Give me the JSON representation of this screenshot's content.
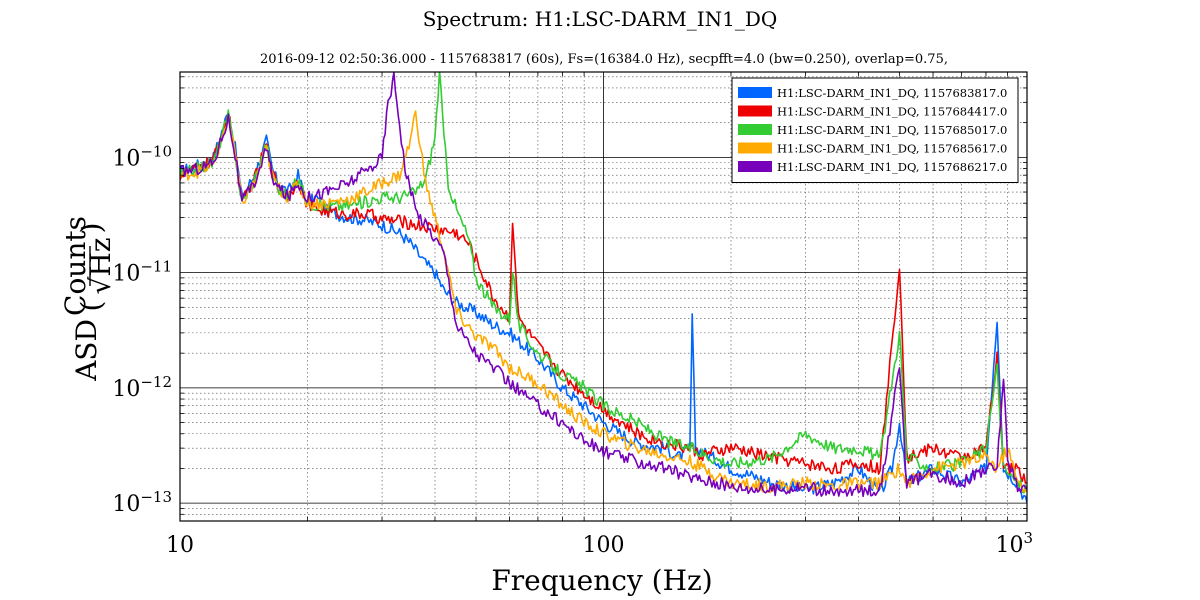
{
  "chart_data": {
    "type": "line",
    "title": "Spectrum: H1:LSC-DARM_IN1_DQ",
    "subtitle": "2016-09-12 02:50:36.000 - 1157683817 (60s), Fs=(16384.0 Hz), secpfft=4.0 (bw=0.250), overlap=0.75,",
    "xlabel": "Frequency (Hz)",
    "ylabel": {
      "prefix": "ASD",
      "numerator": "Counts",
      "denominator": "√Hz"
    },
    "xscale": "log",
    "yscale": "log",
    "xlim": [
      10,
      1000
    ],
    "ylim": [
      7e-14,
      5.5e-10
    ],
    "x_ticks": [
      {
        "value": 10,
        "base": "10",
        "exp": ""
      },
      {
        "value": 100,
        "base": "100",
        "exp": ""
      },
      {
        "value": 1000,
        "base": "10",
        "exp": "3"
      }
    ],
    "y_ticks": [
      {
        "value": 1e-10,
        "base": "10",
        "exp": "−10"
      },
      {
        "value": 1e-11,
        "base": "10",
        "exp": "−11"
      },
      {
        "value": 1e-12,
        "base": "10",
        "exp": "−12"
      },
      {
        "value": 1e-13,
        "base": "10",
        "exp": "−13"
      }
    ],
    "grid": true,
    "legend_position": "top-right",
    "series": [
      {
        "name": "H1:LSC-DARM_IN1_DQ, 1157683817.0",
        "color": "#0066ff",
        "points": [
          [
            10,
            7.5e-11
          ],
          [
            11,
            8.5e-11
          ],
          [
            12,
            1e-10
          ],
          [
            13,
            2.5e-10
          ],
          [
            13.5,
            1.2e-10
          ],
          [
            14,
            4.5e-11
          ],
          [
            15,
            7e-11
          ],
          [
            16,
            1.4e-10
          ],
          [
            16.5,
            8e-11
          ],
          [
            17,
            6e-11
          ],
          [
            18,
            5e-11
          ],
          [
            19,
            7e-11
          ],
          [
            20,
            4e-11
          ],
          [
            21,
            4.5e-11
          ],
          [
            22,
            3.5e-11
          ],
          [
            23,
            3.3e-11
          ],
          [
            25,
            3e-11
          ],
          [
            27,
            2.9e-11
          ],
          [
            30,
            2.6e-11
          ],
          [
            33,
            2.2e-11
          ],
          [
            35,
            1.8e-11
          ],
          [
            38,
            1.2e-11
          ],
          [
            40,
            1e-11
          ],
          [
            42,
            7e-12
          ],
          [
            45,
            5.5e-12
          ],
          [
            50,
            4.5e-12
          ],
          [
            55,
            3.5e-12
          ],
          [
            60,
            3e-12
          ],
          [
            70,
            1.8e-12
          ],
          [
            80,
            1e-12
          ],
          [
            90,
            7e-13
          ],
          [
            100,
            5e-13
          ],
          [
            110,
            4e-13
          ],
          [
            120,
            3.3e-13
          ],
          [
            140,
            3e-13
          ],
          [
            150,
            2.5e-13
          ],
          [
            160,
            3e-13
          ],
          [
            162,
            4e-12
          ],
          [
            165,
            3e-13
          ],
          [
            180,
            2.5e-13
          ],
          [
            200,
            2e-13
          ],
          [
            250,
            1.5e-13
          ],
          [
            300,
            1.3e-13
          ],
          [
            350,
            1.5e-13
          ],
          [
            400,
            2e-13
          ],
          [
            450,
            1.2e-13
          ],
          [
            480,
            2e-13
          ],
          [
            500,
            5e-13
          ],
          [
            520,
            1.5e-13
          ],
          [
            600,
            2e-13
          ],
          [
            700,
            1.5e-13
          ],
          [
            800,
            2e-13
          ],
          [
            850,
            4e-12
          ],
          [
            880,
            2e-13
          ],
          [
            950,
            1.5e-13
          ],
          [
            1000,
            1e-13
          ]
        ]
      },
      {
        "name": "H1:LSC-DARM_IN1_DQ, 1157684417.0",
        "color": "#ee0000",
        "points": [
          [
            10,
            7e-11
          ],
          [
            11,
            8e-11
          ],
          [
            12,
            9.5e-11
          ],
          [
            13,
            2.4e-10
          ],
          [
            13.5,
            1.1e-10
          ],
          [
            14,
            4e-11
          ],
          [
            15,
            6.5e-11
          ],
          [
            16,
            1.3e-10
          ],
          [
            16.5,
            7.5e-11
          ],
          [
            17,
            5.5e-11
          ],
          [
            18,
            4.5e-11
          ],
          [
            19,
            6.5e-11
          ],
          [
            20,
            3.8e-11
          ],
          [
            22,
            3.4e-11
          ],
          [
            25,
            3.2e-11
          ],
          [
            28,
            3.2e-11
          ],
          [
            30,
            2.9e-11
          ],
          [
            33,
            2.8e-11
          ],
          [
            36,
            2.6e-11
          ],
          [
            40,
            2.4e-11
          ],
          [
            45,
            2.2e-11
          ],
          [
            48,
            1.8e-11
          ],
          [
            50,
            1.3e-11
          ],
          [
            55,
            6e-12
          ],
          [
            60,
            4e-12
          ],
          [
            61,
            3e-11
          ],
          [
            63,
            4e-12
          ],
          [
            70,
            2.3e-12
          ],
          [
            80,
            1.3e-12
          ],
          [
            90,
            9e-13
          ],
          [
            100,
            6.5e-13
          ],
          [
            120,
            4e-13
          ],
          [
            140,
            3.3e-13
          ],
          [
            160,
            3e-13
          ],
          [
            170,
            2.6e-13
          ],
          [
            200,
            3e-13
          ],
          [
            250,
            2.5e-13
          ],
          [
            300,
            2.2e-13
          ],
          [
            350,
            2e-13
          ],
          [
            400,
            2.2e-13
          ],
          [
            450,
            2e-13
          ],
          [
            500,
            1.2e-11
          ],
          [
            520,
            2.5e-13
          ],
          [
            600,
            3e-13
          ],
          [
            700,
            2.5e-13
          ],
          [
            800,
            3e-13
          ],
          [
            850,
            1.8e-12
          ],
          [
            880,
            2e-13
          ],
          [
            950,
            2e-13
          ],
          [
            1000,
            1.5e-13
          ]
        ]
      },
      {
        "name": "H1:LSC-DARM_IN1_DQ, 1157685017.0",
        "color": "#33cc33",
        "points": [
          [
            10,
            7e-11
          ],
          [
            11,
            8e-11
          ],
          [
            12,
            9e-11
          ],
          [
            13,
            2.3e-10
          ],
          [
            13.5,
            1.1e-10
          ],
          [
            14,
            4e-11
          ],
          [
            15,
            6.5e-11
          ],
          [
            16,
            1.3e-10
          ],
          [
            16.5,
            7.5e-11
          ],
          [
            17,
            5.5e-11
          ],
          [
            18,
            4.5e-11
          ],
          [
            19,
            6.5e-11
          ],
          [
            20,
            4e-11
          ],
          [
            22,
            3.8e-11
          ],
          [
            25,
            3.8e-11
          ],
          [
            28,
            4.2e-11
          ],
          [
            30,
            4.5e-11
          ],
          [
            33,
            4.5e-11
          ],
          [
            36,
            5e-11
          ],
          [
            38,
            6.5e-11
          ],
          [
            40,
            1.5e-10
          ],
          [
            41,
            5.5e-10
          ],
          [
            42,
            1.5e-10
          ],
          [
            43,
            6e-11
          ],
          [
            45,
            3.5e-11
          ],
          [
            48,
            2e-11
          ],
          [
            50,
            9e-12
          ],
          [
            55,
            5e-12
          ],
          [
            60,
            4e-12
          ],
          [
            61,
            1.1e-11
          ],
          [
            63,
            3.5e-12
          ],
          [
            70,
            2e-12
          ],
          [
            80,
            1.3e-12
          ],
          [
            90,
            1e-12
          ],
          [
            100,
            7e-13
          ],
          [
            120,
            5e-13
          ],
          [
            140,
            3.5e-13
          ],
          [
            160,
            3e-13
          ],
          [
            180,
            2.5e-13
          ],
          [
            200,
            2.2e-13
          ],
          [
            250,
            2.5e-13
          ],
          [
            300,
            4e-13
          ],
          [
            350,
            3e-13
          ],
          [
            400,
            3e-13
          ],
          [
            450,
            2.5e-13
          ],
          [
            500,
            3e-12
          ],
          [
            520,
            2.5e-13
          ],
          [
            600,
            2e-13
          ],
          [
            700,
            2.2e-13
          ],
          [
            800,
            3e-13
          ],
          [
            850,
            1.5e-12
          ],
          [
            880,
            2e-13
          ],
          [
            950,
            1.5e-13
          ],
          [
            1000,
            1.3e-13
          ]
        ]
      },
      {
        "name": "H1:LSC-DARM_IN1_DQ, 1157685617.0",
        "color": "#ffaa00",
        "points": [
          [
            10,
            7e-11
          ],
          [
            11,
            7.5e-11
          ],
          [
            12,
            8.5e-11
          ],
          [
            13,
            2.2e-10
          ],
          [
            13.5,
            1.05e-10
          ],
          [
            14,
            4e-11
          ],
          [
            15,
            6e-11
          ],
          [
            16,
            1.2e-10
          ],
          [
            16.5,
            7e-11
          ],
          [
            17,
            5.5e-11
          ],
          [
            18,
            4.5e-11
          ],
          [
            19,
            6e-11
          ],
          [
            20,
            4e-11
          ],
          [
            22,
            4e-11
          ],
          [
            25,
            4.3e-11
          ],
          [
            28,
            5.2e-11
          ],
          [
            30,
            6e-11
          ],
          [
            33,
            7e-11
          ],
          [
            35,
            1.4e-10
          ],
          [
            36,
            2.5e-10
          ],
          [
            37,
            1.2e-10
          ],
          [
            38,
            6e-11
          ],
          [
            40,
            3e-11
          ],
          [
            42,
            1.5e-11
          ],
          [
            45,
            4.5e-12
          ],
          [
            50,
            2.8e-12
          ],
          [
            55,
            2.2e-12
          ],
          [
            60,
            1.5e-12
          ],
          [
            70,
            1.1e-12
          ],
          [
            80,
            7e-13
          ],
          [
            90,
            5e-13
          ],
          [
            100,
            4e-13
          ],
          [
            120,
            3e-13
          ],
          [
            140,
            2.6e-13
          ],
          [
            160,
            2.3e-13
          ],
          [
            200,
            1.5e-13
          ],
          [
            250,
            1.4e-13
          ],
          [
            300,
            1.5e-13
          ],
          [
            350,
            1.4e-13
          ],
          [
            400,
            1.5e-13
          ],
          [
            450,
            1.5e-13
          ],
          [
            500,
            2e-13
          ],
          [
            520,
            1.5e-13
          ],
          [
            600,
            2e-13
          ],
          [
            700,
            2.2e-13
          ],
          [
            800,
            2.5e-13
          ],
          [
            850,
            2e-13
          ],
          [
            900,
            3e-13
          ],
          [
            950,
            1.5e-13
          ],
          [
            1000,
            1.3e-13
          ]
        ]
      },
      {
        "name": "H1:LSC-DARM_IN1_DQ, 1157686217.0",
        "color": "#7700bb",
        "points": [
          [
            10,
            7.5e-11
          ],
          [
            11,
            8e-11
          ],
          [
            12,
            9e-11
          ],
          [
            13,
            2.2e-10
          ],
          [
            13.5,
            1.05e-10
          ],
          [
            14,
            4e-11
          ],
          [
            15,
            6e-11
          ],
          [
            16,
            1.2e-10
          ],
          [
            16.5,
            7e-11
          ],
          [
            17,
            5.5e-11
          ],
          [
            18,
            4.5e-11
          ],
          [
            19,
            6e-11
          ],
          [
            20,
            4.5e-11
          ],
          [
            22,
            5e-11
          ],
          [
            25,
            6e-11
          ],
          [
            28,
            8e-11
          ],
          [
            30,
            1e-10
          ],
          [
            31,
            3e-10
          ],
          [
            32,
            5e-10
          ],
          [
            33,
            2e-10
          ],
          [
            34,
            8e-11
          ],
          [
            36,
            3.5e-11
          ],
          [
            40,
            2e-11
          ],
          [
            42,
            1.5e-11
          ],
          [
            45,
            3.5e-12
          ],
          [
            50,
            2e-12
          ],
          [
            55,
            1.5e-12
          ],
          [
            60,
            1.1e-12
          ],
          [
            70,
            7e-13
          ],
          [
            80,
            5e-13
          ],
          [
            90,
            3.5e-13
          ],
          [
            100,
            2.8e-13
          ],
          [
            120,
            2.3e-13
          ],
          [
            140,
            2e-13
          ],
          [
            160,
            1.7e-13
          ],
          [
            200,
            1.4e-13
          ],
          [
            250,
            1.3e-13
          ],
          [
            300,
            1.4e-13
          ],
          [
            350,
            1.2e-13
          ],
          [
            400,
            1.3e-13
          ],
          [
            450,
            1.3e-13
          ],
          [
            500,
            1.5e-12
          ],
          [
            520,
            1.5e-13
          ],
          [
            600,
            1.8e-13
          ],
          [
            700,
            1.5e-13
          ],
          [
            800,
            2e-13
          ],
          [
            850,
            2e-13
          ],
          [
            880,
            1.3e-12
          ],
          [
            900,
            2.5e-13
          ],
          [
            950,
            1.4e-13
          ],
          [
            1000,
            1.3e-13
          ]
        ]
      }
    ]
  }
}
